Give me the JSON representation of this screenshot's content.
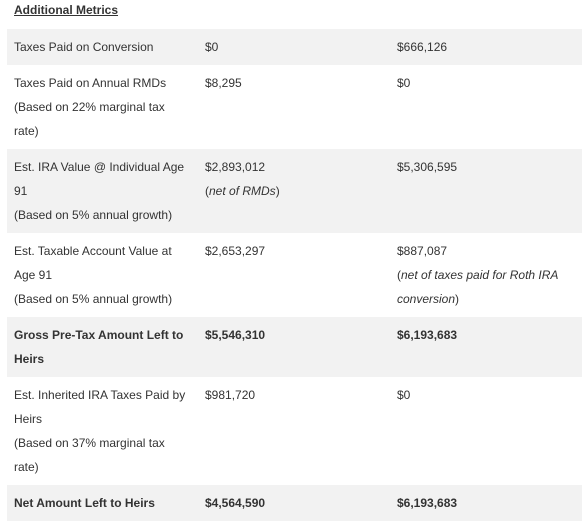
{
  "header": {
    "title": "Additional Metrics"
  },
  "table": {
    "rows": [
      {
        "bold": false,
        "label": [
          "Taxes Paid on Conversion"
        ],
        "cells": [
          {
            "value": "$0"
          },
          {
            "value": "$666,126"
          }
        ]
      },
      {
        "bold": false,
        "label": [
          "Taxes Paid on Annual RMDs",
          "(Based on 22% marginal tax rate)"
        ],
        "cells": [
          {
            "value": "$8,295"
          },
          {
            "value": "$0"
          }
        ]
      },
      {
        "bold": false,
        "label": [
          "Est. IRA Value @ Individual Age 91",
          "(Based on 5% annual growth)"
        ],
        "cells": [
          {
            "value": "$2,893,012",
            "note": [
              "(",
              "net of RMDs",
              ")"
            ]
          },
          {
            "value": "$5,306,595"
          }
        ]
      },
      {
        "bold": false,
        "label": [
          "Est. Taxable Account Value at Age 91",
          "(Based on 5% annual growth)"
        ],
        "cells": [
          {
            "value": "$2,653,297"
          },
          {
            "value": "$887,087",
            "note": [
              "(",
              "net of taxes paid for Roth IRA conversion",
              ")"
            ]
          }
        ]
      },
      {
        "bold": true,
        "label": [
          "Gross Pre-Tax Amount Left to Heirs"
        ],
        "cells": [
          {
            "value": "$5,546,310"
          },
          {
            "value": "$6,193,683"
          }
        ]
      },
      {
        "bold": false,
        "label": [
          "Est. Inherited IRA Taxes Paid by Heirs",
          "(Based on 37% marginal tax rate)"
        ],
        "cells": [
          {
            "value": "$981,720"
          },
          {
            "value": "$0"
          }
        ]
      },
      {
        "bold": true,
        "label": [
          "Net Amount Left to Heirs"
        ],
        "cells": [
          {
            "value": "$4,564,590"
          },
          {
            "value": "$6,193,683"
          }
        ]
      }
    ]
  }
}
